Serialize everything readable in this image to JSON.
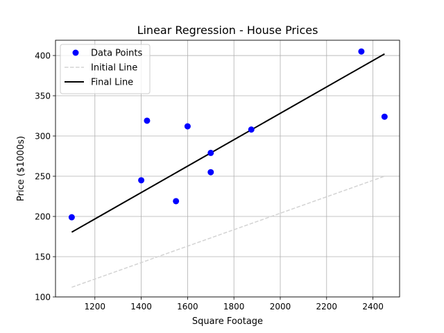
{
  "chart_data": {
    "type": "scatter",
    "title": "Linear Regression - House Prices",
    "xlabel": "Square Footage",
    "ylabel": "Price ($1000s)",
    "xlim": [
      1030,
      2515
    ],
    "ylim": [
      100,
      419
    ],
    "xticks": [
      1200,
      1400,
      1600,
      1800,
      2000,
      2200,
      2400
    ],
    "yticks": [
      100,
      150,
      200,
      250,
      300,
      350,
      400
    ],
    "grid": true,
    "legend_position": "top-left",
    "series": [
      {
        "name": "Data Points",
        "kind": "scatter",
        "color": "#0000ff",
        "x": [
          1100,
          1400,
          1425,
          1550,
          1600,
          1700,
          1700,
          1875,
          2350,
          2450
        ],
        "y": [
          199,
          245,
          319,
          219,
          312,
          279,
          255,
          308,
          405,
          324
        ]
      },
      {
        "name": "Initial Line",
        "kind": "line",
        "style": "dashed",
        "color": "#d3d3d3",
        "x": [
          1100,
          2450
        ],
        "y": [
          112,
          250
        ]
      },
      {
        "name": "Final Line",
        "kind": "line",
        "style": "solid",
        "color": "#000000",
        "x": [
          1100,
          2450
        ],
        "y": [
          180.5,
          402
        ]
      }
    ]
  }
}
